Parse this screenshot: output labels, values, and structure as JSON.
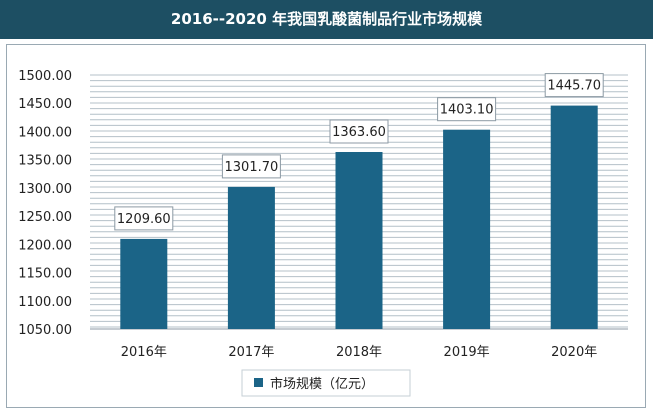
{
  "title": "2016--2020 年我国乳酸菌制品行业市场规模",
  "colors": {
    "header_bg": "#1d4f63",
    "bar": "#1b6487",
    "grid": "#b4c0c8"
  },
  "chart_data": {
    "type": "bar",
    "title": "2016--2020 年我国乳酸菌制品行业市场规模",
    "categories": [
      "2016年",
      "2017年",
      "2018年",
      "2019年",
      "2020年"
    ],
    "series": [
      {
        "name": "市场规模（亿元）",
        "values": [
          1209.6,
          1301.7,
          1363.6,
          1403.1,
          1445.7
        ]
      }
    ],
    "data_labels": [
      "1209.60",
      "1301.70",
      "1363.60",
      "1403.10",
      "1445.70"
    ],
    "y_ticks": [
      "1050.00",
      "1100.00",
      "1150.00",
      "1200.00",
      "1250.00",
      "1300.00",
      "1350.00",
      "1400.00",
      "1450.00",
      "1500.00"
    ],
    "ylim": [
      1050,
      1500
    ],
    "grid": true,
    "legend_position": "bottom"
  }
}
